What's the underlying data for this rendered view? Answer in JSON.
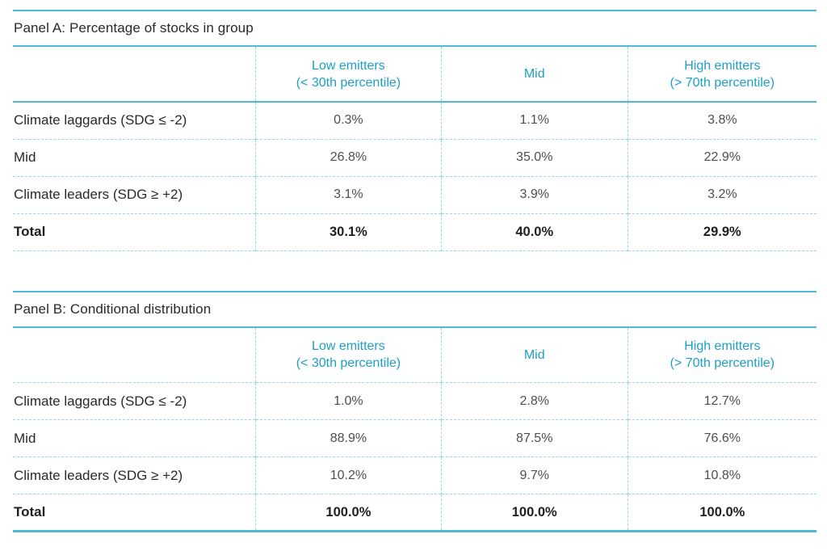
{
  "colors": {
    "teal-line": "#4db9d3",
    "teal-dash": "#94d8e7",
    "header-text": "#1d9fc6",
    "title-text": "#2b2926",
    "label-text": "#2b2926",
    "value-text": "#4e4e50",
    "total-text": "#1f1f1f",
    "page-bg": "#ffffff"
  },
  "columns": [
    {
      "line1": "Low emitters",
      "line2": "(< 30th percentile)"
    },
    {
      "line1": "Mid",
      "line2": ""
    },
    {
      "line1": "High emitters",
      "line2": "(> 70th percentile)"
    }
  ],
  "panels": [
    {
      "title": "Panel A: Percentage of stocks in group",
      "rows": [
        {
          "label": "Climate laggards (SDG ≤ -2)",
          "values": [
            "0.3%",
            "1.1%",
            "3.8%"
          ]
        },
        {
          "label": "Mid",
          "values": [
            "26.8%",
            "35.0%",
            "22.9%"
          ]
        },
        {
          "label": "Climate leaders (SDG ≥ +2)",
          "values": [
            "3.1%",
            "3.9%",
            "3.2%"
          ]
        },
        {
          "label": "Total",
          "values": [
            "30.1%",
            "40.0%",
            "29.9%"
          ]
        }
      ]
    },
    {
      "title": "Panel B: Conditional distribution",
      "rows": [
        {
          "label": "Climate laggards (SDG ≤ -2)",
          "values": [
            "1.0%",
            "2.8%",
            "12.7%"
          ]
        },
        {
          "label": "Mid",
          "values": [
            "88.9%",
            "87.5%",
            "76.6%"
          ]
        },
        {
          "label": "Climate leaders (SDG ≥ +2)",
          "values": [
            "10.2%",
            "9.7%",
            "10.8%"
          ]
        },
        {
          "label": "Total",
          "values": [
            "100.0%",
            "100.0%",
            "100.0%"
          ]
        }
      ]
    }
  ]
}
